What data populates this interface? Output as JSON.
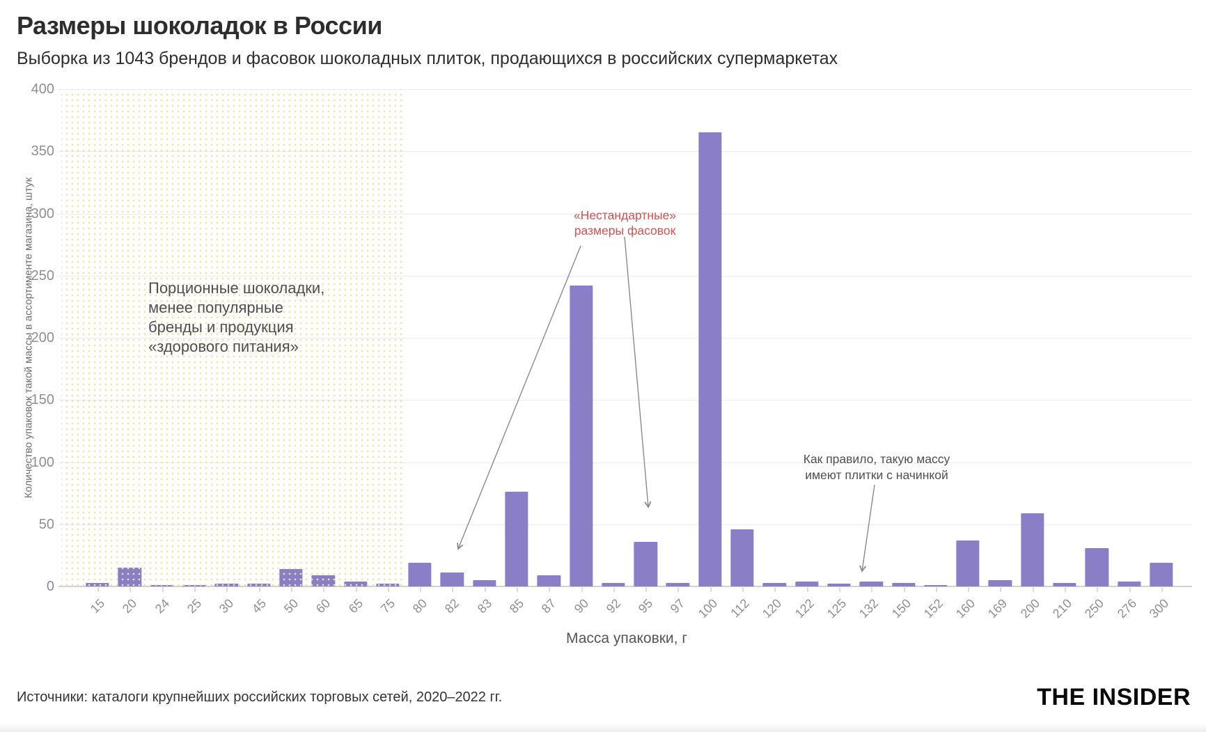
{
  "page": {
    "title": "Размеры шоколадок в России",
    "subtitle": "Выборка из 1043 брендов и фасовок шоколадных плиток, продающихся в российских супермаркетах",
    "source": "Источники: каталоги крупнейших российских торговых сетей, 2020–2022 гг.",
    "brand": "THE INSIDER"
  },
  "chart_data": {
    "type": "bar",
    "title": "Размеры шоколадок в России",
    "xlabel": "Масса упаковки, г",
    "ylabel": "Количество упаковок такой массы в ассортименте магазина, штук",
    "ylim": [
      0,
      400
    ],
    "yticks": [
      0,
      50,
      100,
      150,
      200,
      250,
      300,
      350,
      400
    ],
    "grid": true,
    "legend": "none",
    "bar_color": "#8a7ec6",
    "categories": [
      "15",
      "20",
      "24",
      "25",
      "30",
      "45",
      "50",
      "60",
      "65",
      "75",
      "80",
      "82",
      "83",
      "85",
      "87",
      "90",
      "92",
      "95",
      "97",
      "100",
      "112",
      "120",
      "122",
      "125",
      "132",
      "150",
      "152",
      "160",
      "169",
      "200",
      "210",
      "250",
      "276",
      "300"
    ],
    "values": [
      3,
      15,
      1,
      1,
      2,
      2,
      14,
      9,
      4,
      2,
      19,
      11,
      5,
      76,
      9,
      242,
      3,
      36,
      3,
      365,
      46,
      3,
      4,
      2,
      4,
      3,
      1,
      37,
      5,
      59,
      3,
      31,
      4,
      19
    ],
    "shaded_region": {
      "covers_categories": [
        "15",
        "75"
      ],
      "covers_first_n_categories": 10,
      "dot_color": "#e7e4a3",
      "annotation": [
        "Порционные шоколадки,",
        "менее популярные",
        "бренды и продукция",
        "«здорового питания»"
      ]
    },
    "annotations": [
      {
        "text": [
          "«Нестандартные»",
          "размеры фасовок"
        ],
        "color": "#d94f4f",
        "targets": [
          "82",
          "95"
        ]
      },
      {
        "text": [
          "Как правило, такую массу",
          "имеют плитки с начинкой"
        ],
        "color": "#4f4f4f",
        "targets": [
          "132"
        ]
      }
    ]
  }
}
